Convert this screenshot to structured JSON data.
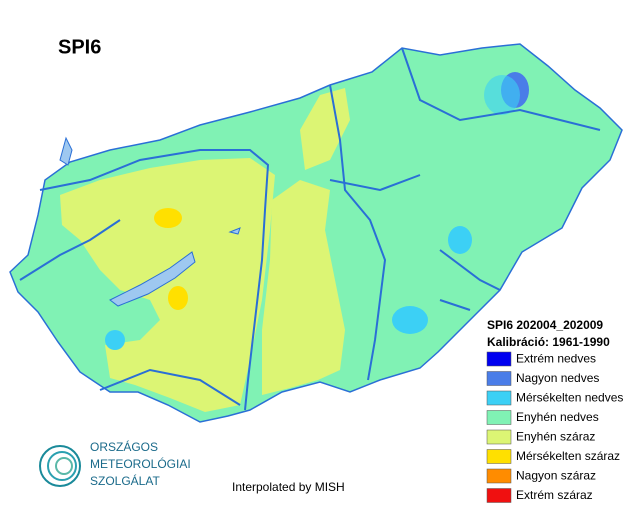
{
  "title": "SPI6",
  "legend": {
    "title": "SPI6 202004_202009",
    "subtitle": "Kalibráció: 1961-1990",
    "items": [
      {
        "name": "Extrém nedves",
        "color": "#0000f0"
      },
      {
        "name": "Nagyon nedves",
        "color": "#4a7de8"
      },
      {
        "name": "Mérsékelten nedves",
        "color": "#3cd0f5"
      },
      {
        "name": "Enyhén nedves",
        "color": "#80f2b4"
      },
      {
        "name": "Enyhén száraz",
        "color": "#dcf574"
      },
      {
        "name": "Mérsékelten száraz",
        "color": "#ffe000"
      },
      {
        "name": "Nagyon száraz",
        "color": "#ff8c00"
      },
      {
        "name": "Extrém száraz",
        "color": "#f01010"
      }
    ]
  },
  "logo": {
    "line1": "ORSZÁGOS",
    "line2": "METEOROLÓGIAI",
    "line3": "SZOLGÁLAT"
  },
  "credit": "Interpolated by MISH"
}
